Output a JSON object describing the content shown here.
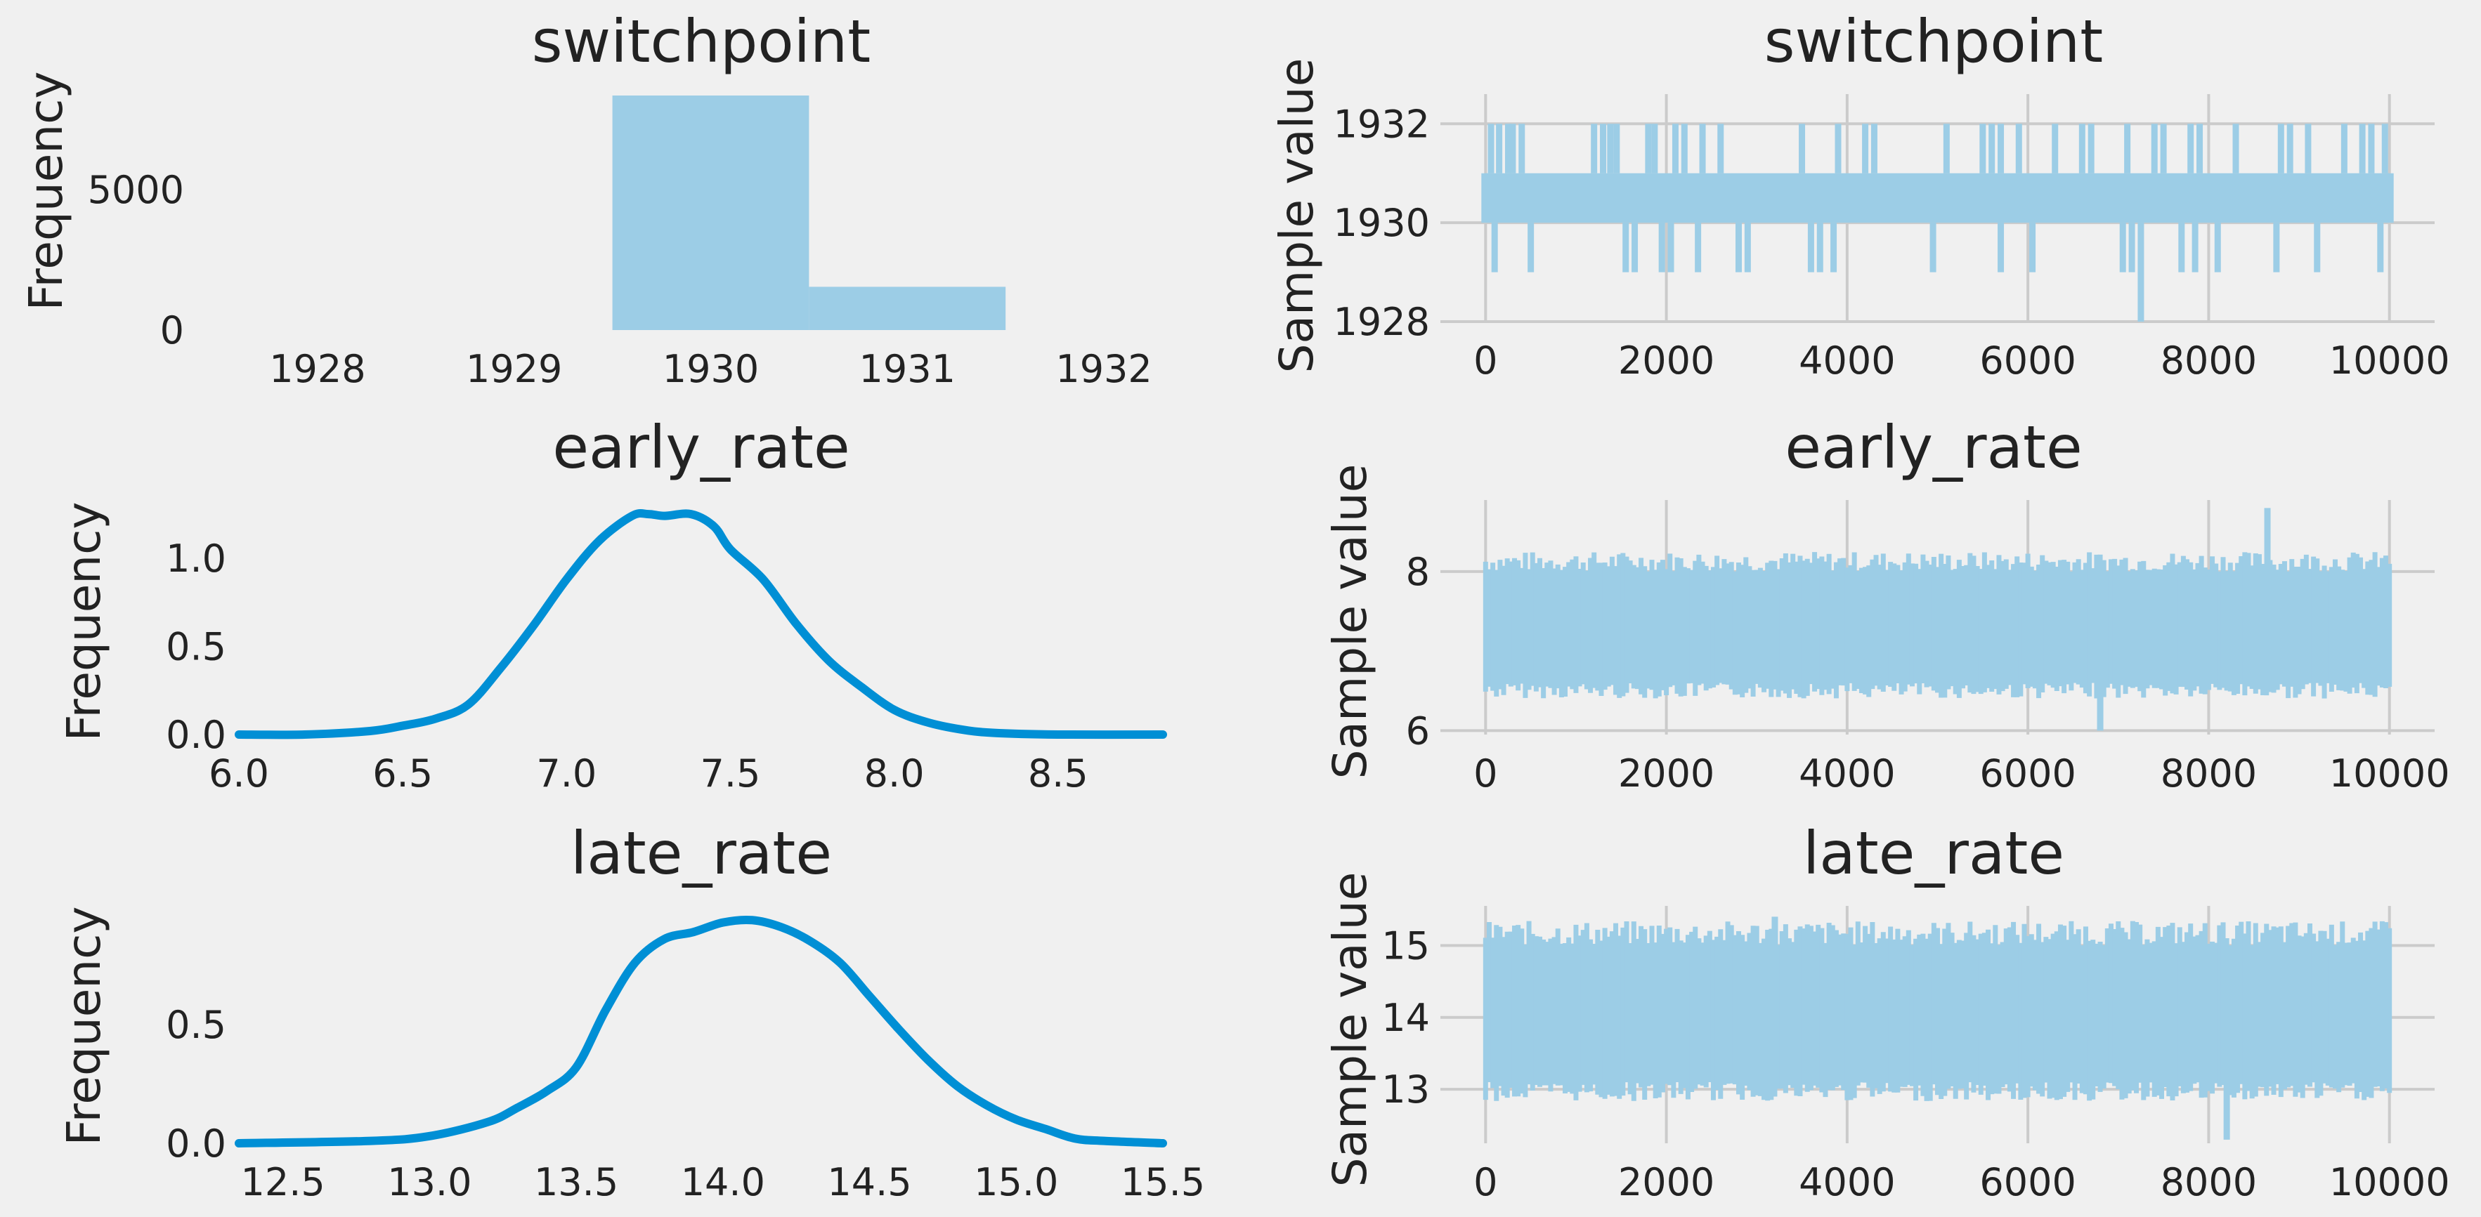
{
  "colors": {
    "background": "#f0f0f0",
    "grid": "#cbcbcb",
    "kde_line": "#008fd5",
    "trace_fill": "#9ccde6",
    "hist_fill": "#9ccde6"
  },
  "chart_data": [
    {
      "type": "bar",
      "id": "switchpoint-hist",
      "title": "switchpoint",
      "ylabel": "Frequency",
      "xlabel": "",
      "xlim": [
        1927.6,
        1932.3
      ],
      "ylim": [
        0,
        8400
      ],
      "xticks": [
        1928,
        1929,
        1930,
        1931,
        1932
      ],
      "yticks": [
        0,
        5000
      ],
      "bins": [
        {
          "start": 1929.5,
          "end": 1930.5,
          "value": 8350
        },
        {
          "start": 1930.5,
          "end": 1931.5,
          "value": 1540
        }
      ]
    },
    {
      "type": "area",
      "id": "switchpoint-trace",
      "title": "switchpoint",
      "ylabel": "Sample value",
      "xlabel": "",
      "xlim": [
        -500,
        10500
      ],
      "ylim": [
        1928,
        1932.6
      ],
      "xticks": [
        0,
        2000,
        4000,
        6000,
        8000,
        10000
      ],
      "yticks": [
        1928,
        1930,
        1932
      ],
      "band": [
        1930,
        1931
      ],
      "spikes_high": [
        60,
        150,
        250,
        300,
        400,
        1200,
        1300,
        1380,
        1450,
        1800,
        1870,
        2100,
        2200,
        2400,
        2600,
        3500,
        3900,
        4200,
        4300,
        5100,
        5500,
        5600,
        5700,
        5900,
        6300,
        6600,
        6700,
        7100,
        7400,
        7500,
        7800,
        7900,
        8300,
        8800,
        8900,
        9100,
        9500,
        9700,
        9800,
        9950
      ],
      "high_value": 1932,
      "spikes_low": [
        100,
        500,
        1550,
        1650,
        1950,
        2050,
        2350,
        2800,
        2900,
        3600,
        3700,
        3850,
        4950,
        5700,
        6050,
        7050,
        7150,
        7700,
        7850,
        8100,
        8750,
        9200,
        9900
      ],
      "low_value": 1929,
      "extreme_low": {
        "x": 7250,
        "value": 1928
      }
    },
    {
      "type": "line",
      "id": "early-rate-kde",
      "title": "early_rate",
      "ylabel": "Frequency",
      "xlabel": "",
      "xlim": [
        6.0,
        8.82
      ],
      "ylim": [
        0,
        1.33
      ],
      "xticks": [
        6.0,
        6.5,
        7.0,
        7.5,
        8.0,
        8.5
      ],
      "yticks": [
        0.0,
        0.5,
        1.0
      ],
      "x": [
        6.0,
        6.2,
        6.4,
        6.5,
        6.6,
        6.7,
        6.8,
        6.9,
        7.0,
        7.1,
        7.2,
        7.25,
        7.3,
        7.38,
        7.45,
        7.5,
        7.6,
        7.7,
        7.8,
        7.9,
        8.0,
        8.1,
        8.2,
        8.3,
        8.5,
        8.82
      ],
      "y": [
        0.0,
        0.0,
        0.02,
        0.05,
        0.09,
        0.17,
        0.38,
        0.62,
        0.88,
        1.1,
        1.24,
        1.25,
        1.24,
        1.25,
        1.18,
        1.05,
        0.88,
        0.63,
        0.42,
        0.27,
        0.14,
        0.07,
        0.03,
        0.01,
        0.0,
        0.0
      ]
    },
    {
      "type": "area",
      "id": "early-rate-trace",
      "title": "early_rate",
      "ylabel": "Sample value",
      "xlabel": "",
      "xlim": [
        -500,
        10500
      ],
      "ylim": [
        5.95,
        8.9
      ],
      "xticks": [
        0,
        2000,
        4000,
        6000,
        8000,
        10000
      ],
      "yticks": [
        6,
        8
      ],
      "band_center": 7.3,
      "band_high": 8.0,
      "band_low": 6.6,
      "max_sample": {
        "x": 8650,
        "value": 8.8
      },
      "min_sample": {
        "x": 6800,
        "value": 6.0
      }
    },
    {
      "type": "line",
      "id": "late-rate-kde",
      "title": "late_rate",
      "ylabel": "Frequency",
      "xlabel": "",
      "xlim": [
        12.35,
        15.5
      ],
      "ylim": [
        0,
        1.0
      ],
      "xticks": [
        12.5,
        13.0,
        13.5,
        14.0,
        14.5,
        15.0,
        15.5
      ],
      "yticks": [
        0.0,
        0.5
      ],
      "x": [
        12.35,
        12.8,
        13.0,
        13.2,
        13.3,
        13.4,
        13.5,
        13.6,
        13.7,
        13.8,
        13.9,
        14.0,
        14.1,
        14.2,
        14.3,
        14.4,
        14.5,
        14.6,
        14.7,
        14.8,
        14.9,
        15.0,
        15.1,
        15.2,
        15.3,
        15.5
      ],
      "y": [
        0.0,
        0.01,
        0.03,
        0.09,
        0.15,
        0.22,
        0.32,
        0.56,
        0.76,
        0.86,
        0.89,
        0.93,
        0.94,
        0.91,
        0.85,
        0.76,
        0.62,
        0.48,
        0.35,
        0.24,
        0.16,
        0.1,
        0.06,
        0.02,
        0.01,
        0.0
      ]
    },
    {
      "type": "area",
      "id": "late-rate-trace",
      "title": "late_rate",
      "ylabel": "Sample value",
      "xlabel": "",
      "xlim": [
        -500,
        10500
      ],
      "ylim": [
        12.25,
        15.55
      ],
      "xticks": [
        0,
        2000,
        4000,
        6000,
        8000,
        10000
      ],
      "yticks": [
        13,
        14,
        15
      ],
      "band_center": 14.05,
      "band_high": 15.0,
      "band_low": 13.1,
      "max_sample": {
        "x": 3200,
        "value": 15.4
      },
      "min_sample": {
        "x": 8200,
        "value": 12.3
      }
    }
  ]
}
